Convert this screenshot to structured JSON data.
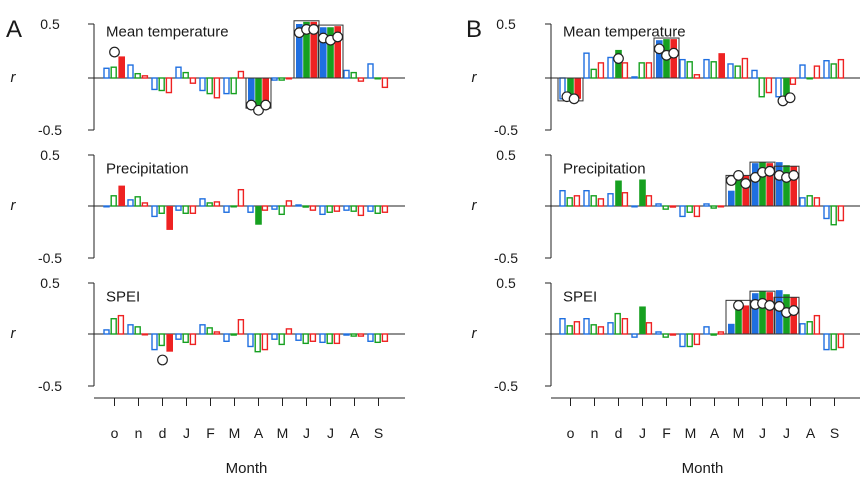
{
  "chart_data": [
    {
      "type": "bar",
      "panel_label": "A",
      "xlabel": "Month",
      "categories": [
        "o",
        "n",
        "d",
        "J",
        "F",
        "M",
        "A",
        "M",
        "J",
        "J",
        "A",
        "S"
      ],
      "series_colors": [
        "#1f6fe0",
        "#16a020",
        "#ee2222"
      ],
      "rows": [
        {
          "title": "Mean temperature",
          "ylabel": "r",
          "ylim": [
            -0.5,
            0.5
          ],
          "yticks": [
            "0.5",
            "",
            "-0.5"
          ],
          "series": [
            {
              "values": [
                0.09,
                0.12,
                -0.11,
                0.1,
                -0.12,
                -0.15,
                -0.28,
                -0.02,
                0.5,
                0.47,
                0.07,
                0.13
              ]
            },
            {
              "values": [
                0.1,
                0.04,
                -0.12,
                0.05,
                -0.15,
                -0.15,
                -0.28,
                -0.02,
                0.52,
                0.47,
                0.05,
                0.0
              ]
            },
            {
              "values": [
                0.2,
                0.02,
                -0.14,
                -0.05,
                -0.19,
                0.06,
                -0.28,
                0.0,
                0.52,
                0.48,
                -0.03,
                -0.09
              ]
            }
          ],
          "filled": [
            [
              false,
              false,
              false,
              false,
              false,
              false,
              true,
              false,
              true,
              true,
              false,
              false
            ],
            [
              false,
              false,
              false,
              false,
              false,
              false,
              true,
              false,
              true,
              true,
              false,
              false
            ],
            [
              true,
              false,
              false,
              false,
              false,
              false,
              true,
              false,
              true,
              true,
              false,
              false
            ]
          ],
          "dots": [
            [
              0,
              0.24
            ],
            [
              6,
              -0.26
            ],
            [
              6,
              -0.31
            ],
            [
              6,
              -0.26
            ],
            [
              8,
              0.42
            ],
            [
              8,
              0.45
            ],
            [
              8,
              0.45
            ],
            [
              9,
              0.37
            ],
            [
              9,
              0.35
            ],
            [
              9,
              0.38
            ]
          ],
          "boxes": [
            [
              6,
              -0.29,
              0
            ],
            [
              8,
              0,
              0.53
            ],
            [
              9,
              0,
              0.49
            ]
          ]
        },
        {
          "title": "Precipitation",
          "ylabel": "r",
          "ylim": [
            -0.5,
            0.5
          ],
          "yticks": [
            "0.5",
            "",
            "-0.5"
          ],
          "series": [
            {
              "values": [
                0.0,
                0.06,
                -0.1,
                -0.04,
                0.07,
                -0.06,
                -0.06,
                -0.03,
                0.01,
                -0.08,
                -0.04,
                -0.05
              ]
            },
            {
              "values": [
                0.1,
                0.09,
                -0.07,
                -0.07,
                0.03,
                0.0,
                -0.18,
                -0.08,
                -0.01,
                -0.06,
                -0.05,
                -0.07
              ]
            },
            {
              "values": [
                0.2,
                0.03,
                -0.23,
                -0.07,
                0.04,
                0.16,
                -0.04,
                0.05,
                -0.04,
                -0.05,
                -0.09,
                -0.06
              ]
            }
          ],
          "filled": [
            [
              false,
              false,
              false,
              false,
              false,
              false,
              false,
              false,
              false,
              false,
              false,
              false
            ],
            [
              false,
              false,
              false,
              false,
              false,
              false,
              true,
              false,
              false,
              false,
              false,
              false
            ],
            [
              true,
              false,
              true,
              false,
              false,
              false,
              false,
              false,
              false,
              false,
              false,
              false
            ]
          ],
          "dots": [],
          "boxes": []
        },
        {
          "title": "SPEI",
          "ylabel": "r",
          "ylim": [
            -0.5,
            0.5
          ],
          "yticks": [
            "0.5",
            "",
            "-0.5"
          ],
          "series": [
            {
              "values": [
                0.04,
                0.09,
                -0.15,
                -0.05,
                0.09,
                -0.07,
                -0.12,
                -0.05,
                -0.06,
                -0.08,
                -0.01,
                -0.07
              ]
            },
            {
              "values": [
                0.15,
                0.07,
                -0.11,
                -0.08,
                0.06,
                -0.01,
                -0.17,
                -0.1,
                -0.09,
                -0.09,
                -0.02,
                -0.08
              ]
            },
            {
              "values": [
                0.18,
                0.0,
                -0.17,
                -0.1,
                0.02,
                0.14,
                -0.15,
                0.05,
                -0.07,
                -0.09,
                -0.02,
                -0.07
              ]
            }
          ],
          "filled": [
            [
              false,
              false,
              false,
              false,
              false,
              false,
              false,
              false,
              false,
              false,
              false,
              false
            ],
            [
              false,
              false,
              false,
              false,
              false,
              false,
              false,
              false,
              false,
              false,
              false,
              false
            ],
            [
              false,
              false,
              true,
              false,
              false,
              false,
              false,
              false,
              false,
              false,
              false,
              false
            ]
          ],
          "dots": [
            [
              2,
              -0.25
            ]
          ],
          "boxes": []
        }
      ]
    },
    {
      "type": "bar",
      "panel_label": "B",
      "xlabel": "Month",
      "categories": [
        "o",
        "n",
        "d",
        "J",
        "F",
        "M",
        "A",
        "M",
        "J",
        "J",
        "A",
        "S"
      ],
      "series_colors": [
        "#1f6fe0",
        "#16a020",
        "#ee2222"
      ],
      "rows": [
        {
          "title": "Mean temperature",
          "ylabel": "r",
          "ylim": [
            -0.5,
            0.5
          ],
          "yticks": [
            "0.5",
            "",
            "-0.5"
          ],
          "series": [
            {
              "values": [
                -0.2,
                0.23,
                0.19,
                0.01,
                0.35,
                0.17,
                0.17,
                0.13,
                0.07,
                -0.18,
                0.12,
                0.16
              ]
            },
            {
              "values": [
                -0.2,
                0.08,
                0.26,
                0.14,
                0.36,
                0.15,
                0.15,
                0.11,
                -0.18,
                -0.21,
                0.0,
                0.13
              ]
            },
            {
              "values": [
                -0.2,
                0.14,
                0.14,
                0.14,
                0.36,
                0.03,
                0.23,
                0.18,
                -0.14,
                -0.06,
                0.11,
                0.17
              ]
            }
          ],
          "filled": [
            [
              false,
              false,
              false,
              false,
              true,
              false,
              false,
              false,
              false,
              false,
              false,
              false
            ],
            [
              true,
              false,
              true,
              false,
              true,
              false,
              false,
              false,
              false,
              true,
              false,
              false
            ],
            [
              true,
              false,
              false,
              false,
              true,
              false,
              true,
              false,
              false,
              false,
              false,
              false
            ]
          ],
          "dots": [
            [
              0,
              -0.18
            ],
            [
              0,
              -0.2
            ],
            [
              2,
              0.18
            ],
            [
              4,
              0.27
            ],
            [
              4,
              0.21
            ],
            [
              4,
              0.23
            ],
            [
              9,
              -0.22
            ],
            [
              9,
              -0.19
            ]
          ],
          "boxes": [
            [
              0,
              -0.22,
              0
            ],
            [
              4,
              0,
              0.37
            ]
          ]
        },
        {
          "title": "Precipitation",
          "ylabel": "r",
          "ylim": [
            -0.5,
            0.5
          ],
          "yticks": [
            "0.5",
            "",
            "-0.5"
          ],
          "series": [
            {
              "values": [
                0.15,
                0.15,
                0.12,
                0.0,
                0.02,
                -0.1,
                0.02,
                0.15,
                0.42,
                0.43,
                0.08,
                -0.12
              ]
            },
            {
              "values": [
                0.08,
                0.1,
                0.25,
                0.26,
                -0.03,
                -0.06,
                -0.02,
                0.33,
                0.43,
                0.4,
                0.1,
                -0.18
              ]
            },
            {
              "values": [
                0.1,
                0.07,
                0.13,
                0.1,
                -0.01,
                -0.1,
                0.0,
                0.3,
                0.42,
                0.39,
                0.08,
                -0.14
              ]
            }
          ],
          "filled": [
            [
              false,
              false,
              false,
              false,
              false,
              false,
              false,
              true,
              true,
              true,
              false,
              false
            ],
            [
              false,
              false,
              true,
              true,
              false,
              false,
              false,
              true,
              true,
              true,
              false,
              false
            ],
            [
              false,
              false,
              false,
              false,
              false,
              false,
              false,
              true,
              true,
              true,
              false,
              false
            ]
          ],
          "dots": [
            [
              7,
              0.25
            ],
            [
              7,
              0.3
            ],
            [
              7,
              0.22
            ],
            [
              8,
              0.28
            ],
            [
              8,
              0.33
            ],
            [
              8,
              0.34
            ],
            [
              9,
              0.3
            ],
            [
              9,
              0.28
            ],
            [
              9,
              0.3
            ]
          ],
          "boxes": [
            [
              7,
              0,
              0.3
            ],
            [
              8,
              0,
              0.43
            ],
            [
              9,
              0,
              0.39
            ]
          ]
        },
        {
          "title": "SPEI",
          "ylabel": "r",
          "ylim": [
            -0.5,
            0.5
          ],
          "yticks": [
            "0.5",
            "",
            "-0.5"
          ],
          "series": [
            {
              "values": [
                0.15,
                0.15,
                0.11,
                -0.03,
                0.02,
                -0.12,
                0.07,
                0.1,
                0.4,
                0.43,
                0.1,
                -0.15
              ]
            },
            {
              "values": [
                0.08,
                0.09,
                0.2,
                0.27,
                -0.03,
                -0.12,
                -0.01,
                0.33,
                0.42,
                0.39,
                0.12,
                -0.15
              ]
            },
            {
              "values": [
                0.12,
                0.07,
                0.15,
                0.11,
                -0.01,
                -0.1,
                0.02,
                0.28,
                0.41,
                0.36,
                0.18,
                -0.13
              ]
            }
          ],
          "filled": [
            [
              false,
              false,
              false,
              false,
              false,
              false,
              false,
              true,
              true,
              true,
              false,
              false
            ],
            [
              false,
              false,
              false,
              true,
              false,
              false,
              false,
              true,
              true,
              true,
              false,
              false
            ],
            [
              false,
              false,
              false,
              false,
              false,
              false,
              false,
              true,
              true,
              true,
              false,
              false
            ]
          ],
          "dots": [
            [
              7,
              0.28
            ],
            [
              8,
              0.29
            ],
            [
              8,
              0.3
            ],
            [
              8,
              0.28
            ],
            [
              9,
              0.27
            ],
            [
              9,
              0.21
            ],
            [
              9,
              0.23
            ]
          ],
          "boxes": [
            [
              7,
              0,
              0.33
            ],
            [
              8,
              0,
              0.42
            ],
            [
              9,
              0,
              0.36
            ]
          ]
        }
      ]
    }
  ]
}
